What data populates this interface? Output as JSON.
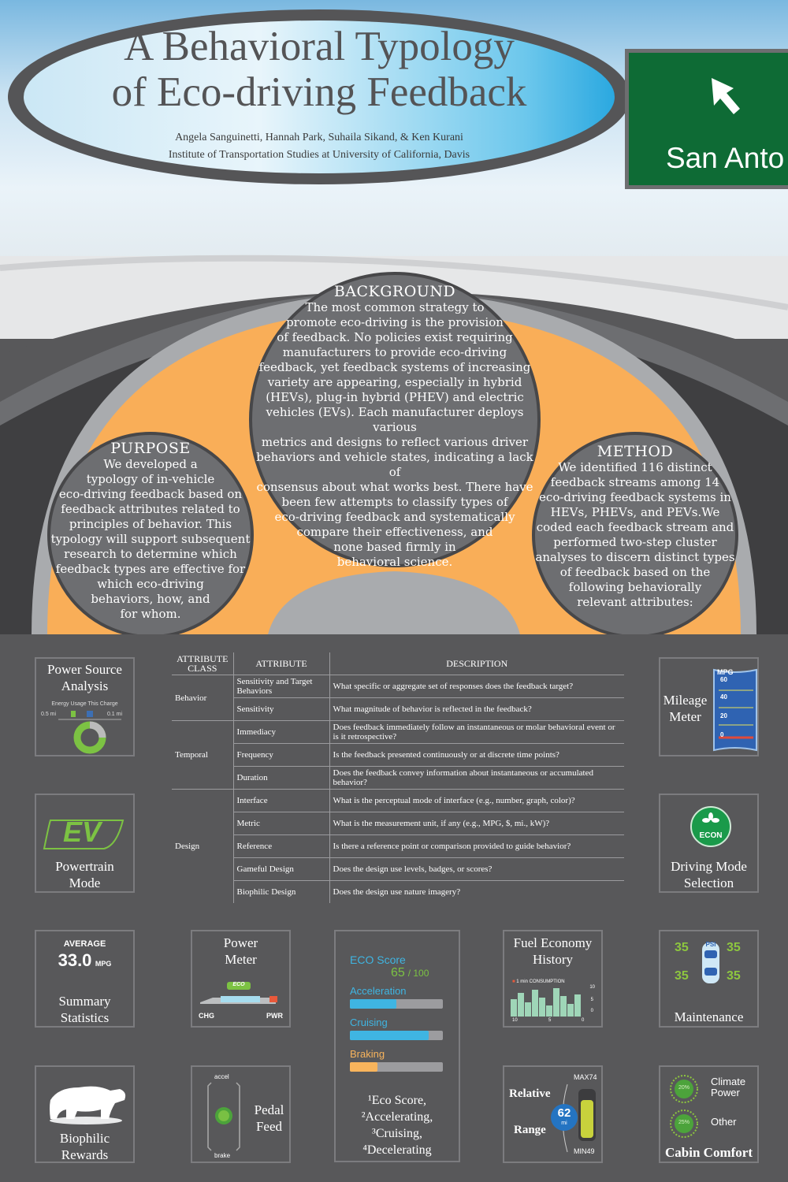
{
  "header": {
    "title_line1": "A Behavioral Typology",
    "title_line2": "of Eco-driving Feedback",
    "authors": "Angela Sanguinetti, Hannah Park, Suhaila Sikand, & Ken Kurani",
    "institution": "Institute of Transportation Studies at University of California, Davis"
  },
  "sign": {
    "text": "San Anto",
    "icon": "arrow-up-left-icon"
  },
  "background": {
    "title": "BACKGROUND",
    "lines": [
      "The most common strategy to",
      "promote eco-driving is the provision",
      "of feedback. No policies exist requiring",
      "manufacturers to provide eco-driving",
      "feedback, yet feedback systems of increasing",
      "variety are appearing, especially in hybrid",
      "(HEVs), plug-in hybrid (PHEV) and electric",
      "vehicles (EVs). Each manufacturer deploys various",
      "metrics and designs to reflect various driver",
      "behaviors and vehicle states, indicating a lack of",
      "consensus about what works best. There have",
      "been few attempts to classify types of",
      "eco-driving feedback and systematically",
      "compare their effectiveness, and",
      "none based firmly in",
      "behavioral science."
    ]
  },
  "purpose": {
    "title": "PURPOSE",
    "lines": [
      "We developed a",
      "typology of in-vehicle",
      "eco-driving feedback based on",
      "feedback attributes related to",
      "principles of behavior. This",
      "typology will support subsequent",
      "research to determine which",
      "feedback types are effective for",
      "which eco-driving",
      "behaviors, how, and",
      "for whom."
    ]
  },
  "method": {
    "title": "METHOD",
    "lines": [
      "We identified 116 distinct",
      "feedback streams among 14",
      "eco-driving feedback systems in",
      "HEVs, PHEVs, and PEVs.We",
      "coded each feedback stream and",
      "performed two-step cluster",
      "analyses to discern distinct types",
      "of feedback based on the",
      "following behaviorally",
      "relevant attributes:"
    ]
  },
  "table": {
    "headers": [
      "ATTRIBUTE CLASS",
      "ATTRIBUTE",
      "DESCRIPTION"
    ],
    "groups": [
      {
        "class": "Behavior",
        "rows": [
          {
            "attribute": "Sensitivity and Target Behaviors",
            "description": "What specific or aggregate set of responses does the feedback target?"
          },
          {
            "attribute": "Sensitivity",
            "description": "What magnitude of behavior is reflected in the feedback?"
          }
        ]
      },
      {
        "class": "Temporal",
        "rows": [
          {
            "attribute": "Immediacy",
            "description": "Does feedback immediately follow an instantaneous or molar behavioral event or is it retrospective?"
          },
          {
            "attribute": "Frequency",
            "description": "Is the feedback presented continuously or at discrete time points?"
          },
          {
            "attribute": "Duration",
            "description": "Does the feedback convey information about instantaneous or accumulated behavior?"
          }
        ]
      },
      {
        "class": "Design",
        "rows": [
          {
            "attribute": "Interface",
            "description": "What is the perceptual mode of interface (e.g., number, graph, color)?"
          },
          {
            "attribute": "Metric",
            "description": "What is the measurement unit, if any (e.g., MPG, $, mi., kW)?"
          },
          {
            "attribute": "Reference",
            "description": "Is there a reference point or comparison provided to guide behavior?"
          },
          {
            "attribute": "Gameful Design",
            "description": "Does the design use levels, badges, or scores?"
          },
          {
            "attribute": "Biophilic Design",
            "description": "Does the design use nature imagery?"
          }
        ]
      }
    ]
  },
  "panels": {
    "power_source": {
      "label": "Power Source Analysis",
      "caption": "Energy Usage This Charge",
      "left_value": "0.5 mi",
      "right_value": "0.1 mi"
    },
    "mileage_meter": {
      "label_line1": "Mileage",
      "label_line2": "Meter",
      "unit": "MPG",
      "ticks": [
        "60",
        "40",
        "20",
        "0"
      ]
    },
    "powertrain": {
      "badge": "EV",
      "label_line1": "Powertrain",
      "label_line2": "Mode"
    },
    "driving_mode": {
      "badge": "ECON",
      "label_line1": "Driving Mode",
      "label_line2": "Selection"
    },
    "summary": {
      "heading": "AVERAGE",
      "value": "33.0",
      "unit": "MPG",
      "label_line1": "Summary",
      "label_line2": "Statistics"
    },
    "power_meter": {
      "label_line1": "Power",
      "label_line2": "Meter",
      "badge": "ECO",
      "left": "CHG",
      "right": "PWR"
    },
    "eco_score": {
      "title": "ECO Score",
      "score": "65",
      "max": "/ 100",
      "bars": [
        {
          "label": "Acceleration",
          "fraction": 0.5,
          "color": "#3fb5e2"
        },
        {
          "label": "Cruising",
          "fraction": 0.85,
          "color": "#3fb5e2"
        },
        {
          "label": "Braking",
          "fraction": 0.3,
          "color": "#f8b45c"
        }
      ],
      "caption_lines": [
        "¹Eco Score,",
        "²Accelerating,",
        "³Cruising,",
        "⁴Decelerating"
      ]
    },
    "fuel_history": {
      "label_line1": "Fuel Economy",
      "label_line2": "History",
      "legend": "1 min CONSUMPTION",
      "y_ticks": [
        "10",
        "5",
        "0"
      ],
      "x_ticks": [
        "10",
        "5",
        "0"
      ]
    },
    "maintenance": {
      "label": "Maintenance",
      "tire_values": [
        "35",
        "35",
        "35",
        "35"
      ],
      "badge": "PSI"
    },
    "biophilic": {
      "label_line1": "Biophilic",
      "label_line2": "Rewards"
    },
    "pedal": {
      "label_line1": "Pedal",
      "label_line2": "Feed",
      "top": "accel",
      "bottom": "brake"
    },
    "range": {
      "label_line1": "Relative",
      "label_line2": "Range",
      "value": "62",
      "unit": "mi",
      "max": "MAX74",
      "min": "MIN49"
    },
    "cabin": {
      "label": "Cabin Comfort",
      "items": [
        {
          "pct": "20%",
          "label_line1": "Climate",
          "label_line2": "Power"
        },
        {
          "pct": "25%",
          "label_line1": "Other",
          "label_line2": ""
        }
      ]
    }
  }
}
